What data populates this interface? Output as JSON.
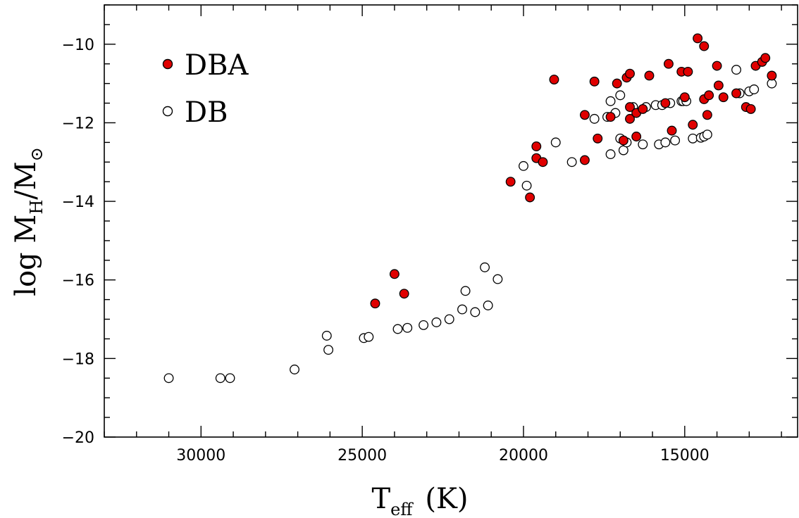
{
  "chart_data": {
    "type": "scatter",
    "title": "",
    "xlabel": {
      "main": "T",
      "sub": "eff",
      "unit": "(K)"
    },
    "ylabel": {
      "main": "log M",
      "sub1": "H",
      "sep": "/M",
      "sub2": "⊙"
    },
    "xlim": [
      33000,
      11500
    ],
    "ylim": [
      -20,
      -9
    ],
    "x_ticks": [
      30000,
      25000,
      20000,
      15000
    ],
    "x_tick_labels": [
      "30000",
      "25000",
      "20000",
      "15000"
    ],
    "y_ticks": [
      -10,
      -12,
      -14,
      -16,
      -18,
      -20
    ],
    "y_tick_labels": [
      "−10",
      "−12",
      "−14",
      "−16",
      "−18",
      "−20"
    ],
    "x_minor_step": 1000,
    "y_minor_step": 0.5,
    "grid": false,
    "legend_position": "top-left",
    "series": [
      {
        "name": "DBA",
        "marker": "filled-circle",
        "color": "#e00000",
        "points": [
          [
            24600,
            -16.6
          ],
          [
            24000,
            -15.85
          ],
          [
            23700,
            -16.35
          ],
          [
            20400,
            -13.5
          ],
          [
            19800,
            -13.9
          ],
          [
            19600,
            -12.9
          ],
          [
            19600,
            -12.6
          ],
          [
            19400,
            -13.0
          ],
          [
            19050,
            -10.9
          ],
          [
            18100,
            -11.8
          ],
          [
            18100,
            -12.95
          ],
          [
            17800,
            -10.95
          ],
          [
            17700,
            -12.4
          ],
          [
            17300,
            -11.85
          ],
          [
            17100,
            -11.0
          ],
          [
            16900,
            -12.45
          ],
          [
            16800,
            -10.85
          ],
          [
            16700,
            -10.75
          ],
          [
            16700,
            -11.6
          ],
          [
            16700,
            -11.9
          ],
          [
            16500,
            -12.35
          ],
          [
            16500,
            -11.75
          ],
          [
            16300,
            -11.65
          ],
          [
            16100,
            -10.8
          ],
          [
            15600,
            -11.5
          ],
          [
            15500,
            -10.5
          ],
          [
            15400,
            -12.2
          ],
          [
            15100,
            -10.7
          ],
          [
            15000,
            -11.35
          ],
          [
            14900,
            -10.7
          ],
          [
            14750,
            -12.05
          ],
          [
            14600,
            -9.85
          ],
          [
            14400,
            -10.05
          ],
          [
            14400,
            -11.4
          ],
          [
            14300,
            -11.8
          ],
          [
            14250,
            -11.3
          ],
          [
            14000,
            -10.55
          ],
          [
            13950,
            -11.05
          ],
          [
            13800,
            -11.35
          ],
          [
            13400,
            -11.25
          ],
          [
            13100,
            -11.6
          ],
          [
            12950,
            -11.65
          ],
          [
            12800,
            -10.55
          ],
          [
            12600,
            -10.45
          ],
          [
            12500,
            -10.35
          ],
          [
            12300,
            -10.8
          ]
        ]
      },
      {
        "name": "DB",
        "marker": "open-circle",
        "color": "#ffffff",
        "points": [
          [
            31000,
            -18.5
          ],
          [
            29400,
            -18.5
          ],
          [
            29100,
            -18.5
          ],
          [
            27100,
            -18.28
          ],
          [
            26100,
            -17.42
          ],
          [
            26050,
            -17.78
          ],
          [
            24950,
            -17.48
          ],
          [
            24800,
            -17.45
          ],
          [
            23900,
            -17.25
          ],
          [
            23600,
            -17.22
          ],
          [
            23100,
            -17.15
          ],
          [
            22700,
            -17.08
          ],
          [
            22300,
            -17.0
          ],
          [
            21900,
            -16.75
          ],
          [
            21800,
            -16.28
          ],
          [
            21500,
            -16.82
          ],
          [
            21200,
            -15.68
          ],
          [
            21100,
            -16.65
          ],
          [
            20800,
            -15.98
          ],
          [
            20000,
            -13.1
          ],
          [
            19900,
            -13.6
          ],
          [
            19000,
            -12.5
          ],
          [
            18500,
            -13.0
          ],
          [
            17800,
            -11.9
          ],
          [
            17400,
            -11.85
          ],
          [
            17300,
            -11.45
          ],
          [
            17300,
            -12.8
          ],
          [
            17150,
            -11.75
          ],
          [
            17000,
            -11.3
          ],
          [
            17000,
            -12.4
          ],
          [
            16900,
            -12.7
          ],
          [
            16800,
            -12.5
          ],
          [
            16600,
            -11.6
          ],
          [
            16300,
            -12.55
          ],
          [
            16200,
            -11.6
          ],
          [
            15900,
            -11.55
          ],
          [
            15800,
            -12.55
          ],
          [
            15700,
            -11.55
          ],
          [
            15600,
            -12.5
          ],
          [
            15450,
            -11.5
          ],
          [
            15300,
            -12.45
          ],
          [
            15100,
            -11.45
          ],
          [
            15050,
            -11.45
          ],
          [
            14950,
            -11.45
          ],
          [
            14750,
            -12.4
          ],
          [
            14500,
            -12.38
          ],
          [
            14400,
            -12.35
          ],
          [
            14300,
            -12.3
          ],
          [
            13400,
            -10.65
          ],
          [
            13300,
            -11.25
          ],
          [
            13000,
            -11.2
          ],
          [
            12850,
            -11.15
          ],
          [
            12300,
            -11.0
          ]
        ]
      }
    ]
  }
}
